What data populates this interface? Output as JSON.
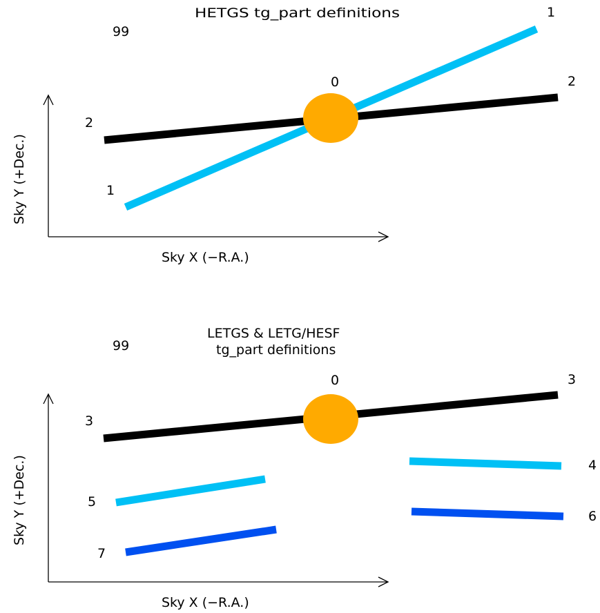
{
  "colors": {
    "order2_line": "#000000",
    "order1_line": "#00c0f5",
    "order6_line": "#0050f0",
    "zero_order": "#ffaa00",
    "axis": "#000000"
  },
  "top": {
    "title": "HETGS tg_part definitions",
    "label_99": "99",
    "label_0": "0",
    "label_1_right": "1",
    "label_2_right": "2",
    "label_2_left": "2",
    "label_1_left": "1",
    "x_axis_label": "Sky X (−R.A.)",
    "y_axis_label": "Sky Y (+Dec.)"
  },
  "bottom": {
    "title_line1": "LETGS & LETG/HESF",
    "title_line2": "tg_part definitions",
    "label_99": "99",
    "label_0": "0",
    "label_3_right": "3",
    "label_3_left": "3",
    "label_4": "4",
    "label_5": "5",
    "label_6": "6",
    "label_7": "7",
    "x_axis_label": "Sky X (−R.A.)",
    "y_axis_label": "Sky Y (+Dec.)"
  }
}
